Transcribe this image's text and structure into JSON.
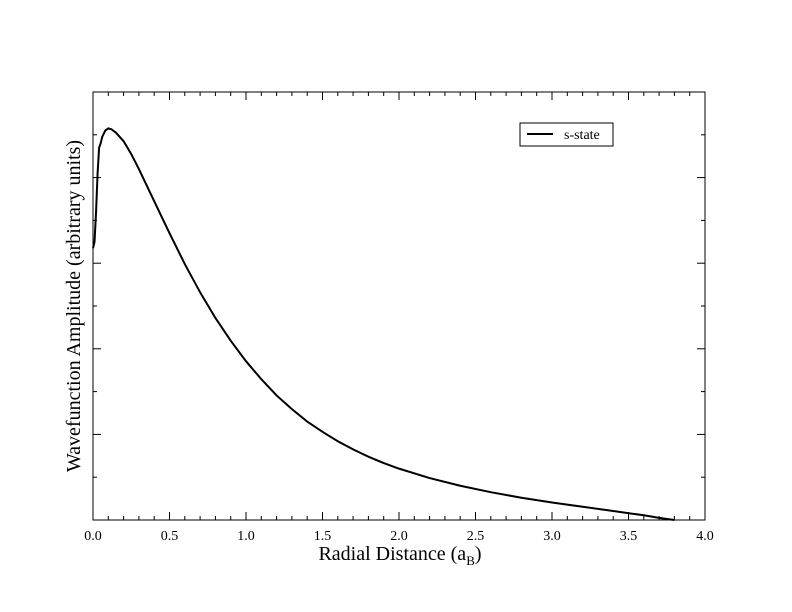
{
  "chart_data": {
    "type": "line",
    "title": "",
    "xlabel": "Radial Distance (a",
    "xlabel_sub": "B",
    "xlabel_close": ")",
    "ylabel": "Wavefunction Amplitude (arbitrary units)",
    "xlim": [
      0.0,
      4.0
    ],
    "ylim": [
      0,
      1
    ],
    "x_ticks": [
      "0.0",
      "0.5",
      "1.0",
      "1.5",
      "2.0",
      "2.5",
      "3.0",
      "3.5",
      "4.0"
    ],
    "x_tick_values": [
      0.0,
      0.5,
      1.0,
      1.5,
      2.0,
      2.5,
      3.0,
      3.5,
      4.0
    ],
    "y_tick_labels_shown": false,
    "grid": false,
    "legend_position": "top-right",
    "series": [
      {
        "name": "s-state",
        "color": "#000000",
        "x": [
          0.0,
          0.01,
          0.02,
          0.03,
          0.04,
          0.05,
          0.06,
          0.08,
          0.1,
          0.12,
          0.15,
          0.2,
          0.25,
          0.3,
          0.4,
          0.5,
          0.6,
          0.7,
          0.8,
          0.9,
          1.0,
          1.1,
          1.2,
          1.3,
          1.4,
          1.5,
          1.6,
          1.7,
          1.8,
          1.9,
          2.0,
          2.2,
          2.4,
          2.6,
          2.8,
          3.0,
          3.2,
          3.4,
          3.6,
          3.7,
          3.8
        ],
        "values": [
          0.635,
          0.65,
          0.72,
          0.81,
          0.87,
          0.88,
          0.895,
          0.91,
          0.915,
          0.913,
          0.905,
          0.885,
          0.855,
          0.82,
          0.745,
          0.67,
          0.598,
          0.532,
          0.472,
          0.419,
          0.371,
          0.329,
          0.291,
          0.259,
          0.23,
          0.206,
          0.184,
          0.165,
          0.148,
          0.133,
          0.12,
          0.098,
          0.08,
          0.065,
          0.052,
          0.041,
          0.031,
          0.021,
          0.011,
          0.005,
          0.0
        ]
      }
    ]
  }
}
